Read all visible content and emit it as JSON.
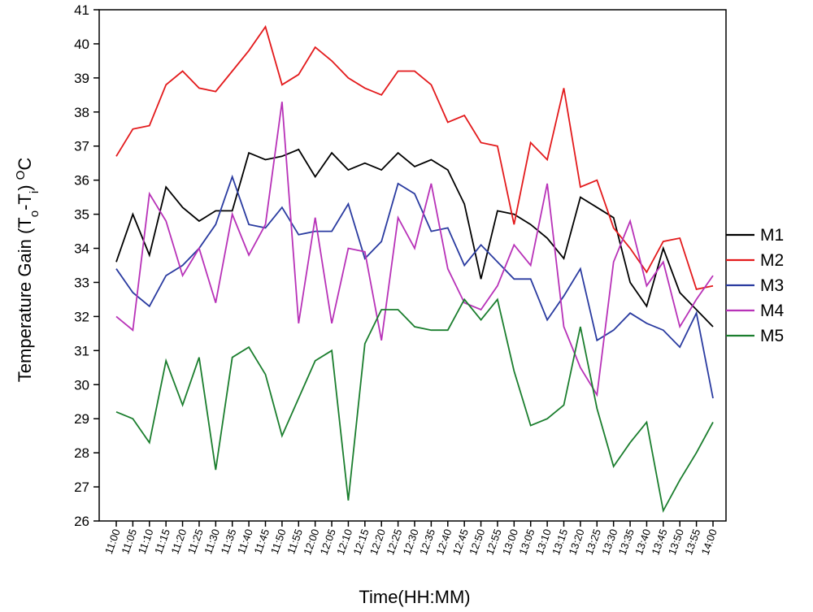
{
  "chart_data": {
    "type": "line",
    "xlabel": "Time(HH:MM)",
    "ylabel": {
      "prefix": "Temperature Gain (T",
      "sub1": "o",
      "mid": "-T",
      "sub2": "i",
      "close": ")",
      "sup": "O",
      "unit": "C"
    },
    "ylim": [
      26,
      41
    ],
    "yticks": [
      26,
      27,
      28,
      29,
      30,
      31,
      32,
      33,
      34,
      35,
      36,
      37,
      38,
      39,
      40,
      41
    ],
    "grid": false,
    "legend_position": "right",
    "x": [
      "11:00",
      "11:05",
      "11:10",
      "11:15",
      "11:20",
      "11:25",
      "11:30",
      "11:35",
      "11:40",
      "11:45",
      "11:50",
      "11:55",
      "12:00",
      "12:05",
      "12:10",
      "12:15",
      "12:20",
      "12:25",
      "12:30",
      "12:35",
      "12:40",
      "12:45",
      "12:50",
      "12:55",
      "13:00",
      "13:05",
      "13:10",
      "13:15",
      "13:20",
      "13:25",
      "13:30",
      "13:35",
      "13:40",
      "13:45",
      "13:50",
      "13:55",
      "14:00"
    ],
    "series": [
      {
        "name": "M1",
        "color": "#000000",
        "values": [
          33.6,
          35.0,
          33.8,
          35.8,
          35.2,
          34.8,
          35.1,
          35.1,
          36.8,
          36.6,
          36.7,
          36.9,
          36.1,
          36.8,
          36.3,
          36.5,
          36.3,
          36.8,
          36.4,
          36.6,
          36.3,
          35.3,
          33.1,
          35.1,
          35.0,
          34.7,
          34.3,
          33.7,
          35.5,
          35.2,
          34.9,
          33.0,
          32.3,
          34.0,
          32.7,
          32.2,
          31.7
        ]
      },
      {
        "name": "M2",
        "color": "#e31a1c",
        "values": [
          36.7,
          37.5,
          37.6,
          38.8,
          39.2,
          38.7,
          38.6,
          39.2,
          39.8,
          40.5,
          38.8,
          39.1,
          39.9,
          39.5,
          39.0,
          38.7,
          38.5,
          39.2,
          39.2,
          38.8,
          37.7,
          37.9,
          37.1,
          37.0,
          34.7,
          37.1,
          36.6,
          38.7,
          35.8,
          36.0,
          34.6,
          34.0,
          33.3,
          34.2,
          34.3,
          32.8,
          32.9
        ]
      },
      {
        "name": "M3",
        "color": "#2a3ba0",
        "values": [
          33.4,
          32.7,
          32.3,
          33.2,
          33.5,
          34.0,
          34.7,
          36.1,
          34.7,
          34.6,
          35.2,
          34.4,
          34.5,
          34.5,
          35.3,
          33.7,
          34.2,
          35.9,
          35.6,
          34.5,
          34.6,
          33.5,
          34.1,
          33.6,
          33.1,
          33.1,
          31.9,
          32.6,
          33.4,
          31.3,
          31.6,
          32.1,
          31.8,
          31.6,
          31.1,
          32.1,
          29.6
        ]
      },
      {
        "name": "M4",
        "color": "#b832b8",
        "values": [
          32.0,
          31.6,
          35.6,
          34.8,
          33.2,
          34.0,
          32.4,
          35.0,
          33.8,
          34.7,
          38.3,
          31.8,
          34.9,
          31.8,
          34.0,
          33.9,
          31.3,
          34.9,
          34.0,
          35.9,
          33.4,
          32.4,
          32.2,
          32.9,
          34.1,
          33.5,
          35.9,
          31.7,
          30.5,
          29.7,
          33.6,
          34.8,
          32.9,
          33.6,
          31.7,
          32.5,
          33.2
        ]
      },
      {
        "name": "M5",
        "color": "#1b7e2e",
        "values": [
          29.2,
          29.0,
          28.3,
          30.7,
          29.4,
          30.8,
          27.5,
          30.8,
          31.1,
          30.3,
          28.5,
          29.6,
          30.7,
          31.0,
          26.6,
          31.2,
          32.2,
          32.2,
          31.7,
          31.6,
          31.6,
          32.5,
          31.9,
          32.5,
          30.4,
          28.8,
          29.0,
          29.4,
          31.7,
          29.3,
          27.6,
          28.3,
          28.9,
          26.3,
          27.2,
          28.0,
          28.9
        ]
      }
    ]
  }
}
